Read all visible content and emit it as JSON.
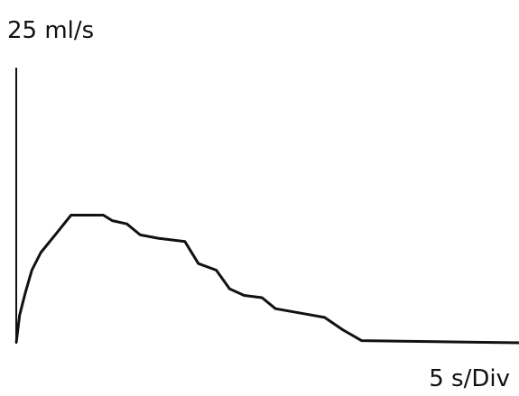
{
  "chart_data": {
    "type": "line",
    "y_label": "25 ml/s",
    "x_label": "5 s/Div",
    "x": [
      0,
      0.3,
      0.8,
      1.4,
      2.2,
      3.4,
      4.9,
      7.8,
      8.6,
      9.9,
      11.1,
      12.7,
      15.1,
      16.3,
      17.9,
      19.1,
      20.4,
      22.0,
      23.2,
      26.0,
      27.6,
      29.2,
      30.9,
      45.0
    ],
    "values": [
      0,
      2.5,
      4.5,
      6.6,
      8.2,
      9.7,
      11.6,
      11.6,
      11.1,
      10.8,
      9.8,
      9.5,
      9.2,
      7.2,
      6.6,
      4.9,
      4.3,
      4.1,
      3.1,
      2.6,
      2.3,
      1.2,
      0.2,
      0
    ],
    "color": "#111111",
    "xlim": [
      0,
      45
    ],
    "ylim": [
      0,
      25
    ]
  }
}
